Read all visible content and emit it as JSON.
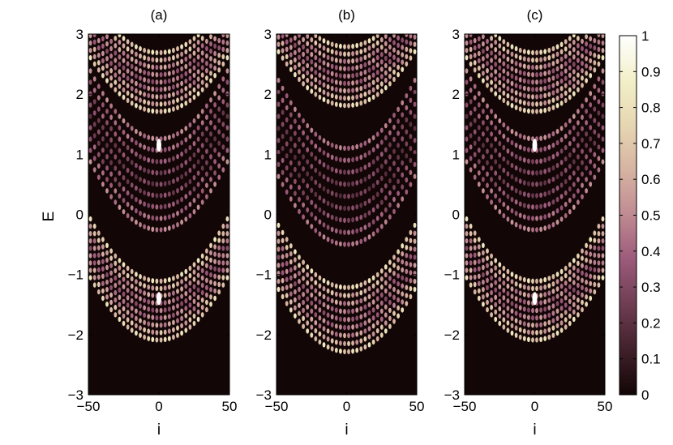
{
  "chart_data": {
    "type": "heatmap",
    "panels": [
      {
        "title": "(a)",
        "xlabel": "i",
        "ylabel": "E",
        "xlim": [
          -50,
          50
        ],
        "ylim": [
          -3,
          3
        ],
        "x_ticks": [
          -50,
          0,
          50
        ],
        "x_tick_labels": [
          "−50",
          "0",
          "50"
        ],
        "y_ticks": [
          -3,
          -2,
          -1,
          0,
          1,
          2,
          3
        ],
        "y_tick_labels": [
          "−3",
          "−2",
          "−1",
          "0",
          "1",
          "2",
          "3"
        ],
        "bands": [
          {
            "E_center": 2.2,
            "E_half_width": 0.55,
            "curvature": 0.95,
            "intensity": 0.85
          },
          {
            "E_center": 0.5,
            "E_half_width": 0.85,
            "curvature": 1.2,
            "intensity": 0.55
          },
          {
            "E_center": -1.6,
            "E_half_width": 0.55,
            "curvature": 1.1,
            "intensity": 0.85
          }
        ],
        "edge_states": [
          {
            "E": 1.15,
            "i": 0,
            "intensity": 1.0
          },
          {
            "E": -1.4,
            "i": 0,
            "intensity": 1.0
          }
        ]
      },
      {
        "title": "(b)",
        "xlabel": "i",
        "ylabel": "",
        "xlim": [
          -50,
          50
        ],
        "ylim": [
          -3,
          3
        ],
        "x_ticks": [
          -50,
          0,
          50
        ],
        "x_tick_labels": [
          "−50",
          "0",
          "50"
        ],
        "y_ticks": [
          -3,
          -2,
          -1,
          0,
          1,
          2,
          3
        ],
        "y_tick_labels": [
          "−3",
          "−2",
          "−1",
          "0",
          "1",
          "2",
          "3"
        ],
        "bands": [
          {
            "E_center": 2.3,
            "E_half_width": 0.55,
            "curvature": 0.95,
            "intensity": 0.85
          },
          {
            "E_center": 0.3,
            "E_half_width": 0.9,
            "curvature": 1.2,
            "intensity": 0.5
          },
          {
            "E_center": -1.75,
            "E_half_width": 0.6,
            "curvature": 1.1,
            "intensity": 0.85
          }
        ],
        "edge_states": []
      },
      {
        "title": "(c)",
        "xlabel": "i",
        "ylabel": "",
        "xlim": [
          -50,
          50
        ],
        "ylim": [
          -3,
          3
        ],
        "x_ticks": [
          -50,
          0,
          50
        ],
        "x_tick_labels": [
          "−50",
          "0",
          "50"
        ],
        "y_ticks": [
          -3,
          -2,
          -1,
          0,
          1,
          2,
          3
        ],
        "y_tick_labels": [
          "−3",
          "−2",
          "−1",
          "0",
          "1",
          "2",
          "3"
        ],
        "bands": [
          {
            "E_center": 2.2,
            "E_half_width": 0.55,
            "curvature": 0.95,
            "intensity": 0.85
          },
          {
            "E_center": 0.5,
            "E_half_width": 0.85,
            "curvature": 1.2,
            "intensity": 0.55
          },
          {
            "E_center": -1.6,
            "E_half_width": 0.55,
            "curvature": 1.1,
            "intensity": 0.85
          }
        ],
        "edge_states": [
          {
            "E": 1.15,
            "i": 0,
            "intensity": 1.0
          },
          {
            "E": -1.4,
            "i": 0,
            "intensity": 1.0
          }
        ]
      }
    ],
    "colorbar": {
      "range": [
        0,
        1
      ],
      "ticks": [
        0,
        0.1,
        0.2,
        0.3,
        0.4,
        0.5,
        0.6,
        0.7,
        0.8,
        0.9,
        1
      ],
      "tick_labels": [
        "0",
        "0.1",
        "0.2",
        "0.3",
        "0.4",
        "0.5",
        "0.6",
        "0.7",
        "0.8",
        "0.9",
        "1"
      ],
      "colormap": "pink-ish",
      "colors": [
        "#120606",
        "#40202a",
        "#6e3d52",
        "#9c5a7a",
        "#bf8a92",
        "#d6b3a2",
        "#e6d6b2",
        "#f2f0c8",
        "#ffffff"
      ]
    }
  }
}
